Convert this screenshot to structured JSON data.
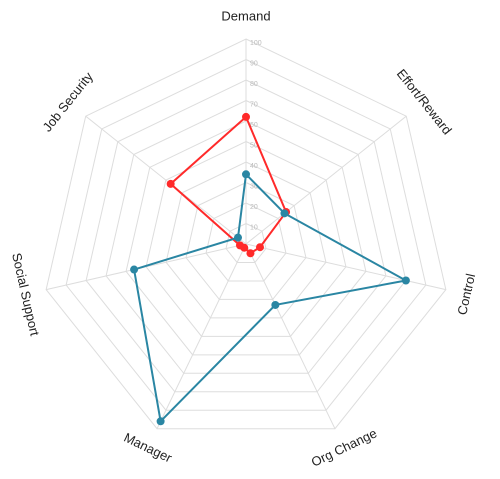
{
  "chart_data": {
    "type": "radar",
    "categories": [
      "Demand",
      "Effort/Reward",
      "Control",
      "Org Change",
      "Manager",
      "Social Support",
      "Job Security"
    ],
    "series": [
      {
        "color": "#ff2a2a",
        "values": [
          62,
          25,
          7,
          5,
          2,
          3,
          47
        ]
      },
      {
        "color": "#2a86a3",
        "values": [
          34,
          24,
          80,
          33,
          96,
          56,
          5
        ]
      }
    ],
    "ylim": [
      0,
      100
    ],
    "yticks": [
      10,
      20,
      30,
      40,
      50,
      60,
      70,
      80,
      90,
      100
    ],
    "grid": true
  }
}
